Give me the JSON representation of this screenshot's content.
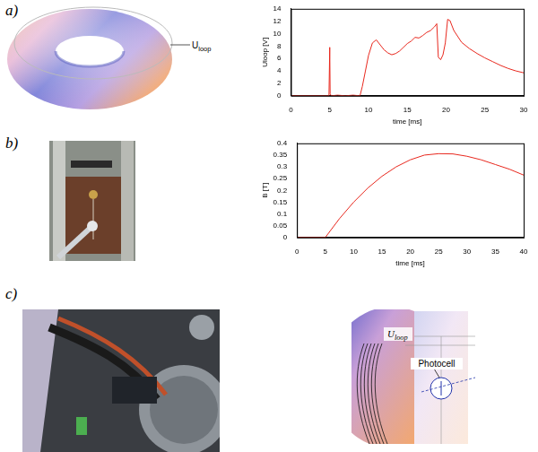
{
  "figure": {
    "panels": [
      {
        "label": "a)",
        "image_label": {
          "base": "U",
          "sub": "loop"
        }
      },
      {
        "label": "b)"
      },
      {
        "label": "c)",
        "diagram_labels": {
          "coil": {
            "base": "U",
            "sub": "loop"
          },
          "sensor": "Photocell"
        }
      }
    ]
  },
  "chart_data": [
    {
      "type": "line",
      "x_label": "time [ms]",
      "y_label": "Uloop [V]",
      "color": "#e8281e",
      "grid": false,
      "x": [
        0,
        4.9,
        5.0,
        5.05,
        5.2,
        6,
        7,
        8,
        8.9,
        9.2,
        9.6,
        10,
        10.5,
        11,
        11.5,
        12,
        12.5,
        13,
        13.5,
        14,
        14.5,
        15,
        15.5,
        16,
        16.5,
        17,
        17.5,
        18,
        18.5,
        18.8,
        19.0,
        19.3,
        19.6,
        19.9,
        20.2,
        20.5,
        21,
        22,
        23,
        24,
        25,
        26,
        27,
        28,
        29,
        30
      ],
      "values": [
        0,
        0,
        7.8,
        0.3,
        0,
        0.1,
        0,
        0.1,
        0,
        1.5,
        4,
        6.5,
        8.5,
        9.0,
        8.2,
        7.4,
        6.9,
        6.6,
        6.8,
        7.2,
        7.8,
        8.4,
        8.8,
        9.4,
        9.3,
        9.7,
        10.2,
        10.5,
        11.1,
        11.6,
        6.2,
        5.8,
        6.6,
        8.5,
        12.3,
        12.1,
        10.5,
        8.6,
        7.6,
        6.8,
        6.1,
        5.5,
        4.9,
        4.4,
        4.0,
        3.7
      ],
      "xlim": [
        0,
        30
      ],
      "xticks": [
        0,
        5,
        10,
        15,
        20,
        25,
        30
      ],
      "ylim": [
        0,
        14
      ],
      "yticks": [
        0,
        2,
        4,
        6,
        8,
        10,
        12,
        14
      ]
    },
    {
      "type": "line",
      "x_label": "time [ms]",
      "y_label": "B [T]",
      "color": "#e8281e",
      "grid": false,
      "x": [
        0,
        5,
        7.5,
        10,
        12.5,
        15,
        17.5,
        20,
        22.5,
        25,
        27.5,
        30,
        32.5,
        35,
        37.5,
        40
      ],
      "values": [
        0,
        0,
        0.08,
        0.15,
        0.21,
        0.26,
        0.3,
        0.33,
        0.35,
        0.356,
        0.355,
        0.345,
        0.33,
        0.31,
        0.29,
        0.265
      ],
      "xlim": [
        0,
        40
      ],
      "xticks": [
        0,
        5,
        10,
        15,
        20,
        25,
        30,
        35,
        40
      ],
      "ylim": [
        0,
        0.4
      ],
      "yticks": [
        0,
        0.05,
        0.1,
        0.15,
        0.2,
        0.25,
        0.3,
        0.35,
        0.4
      ]
    }
  ]
}
